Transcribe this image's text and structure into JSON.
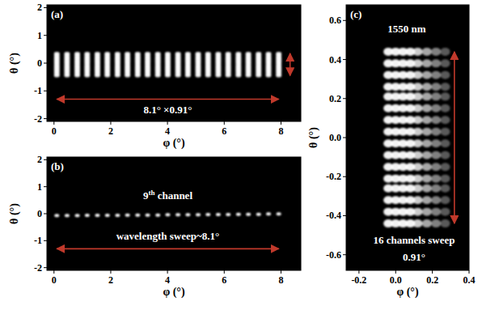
{
  "chart_data": [
    {
      "type": "spot_grid",
      "title": "(a)",
      "x_label": "φ (°)",
      "y_label": "θ (°)",
      "x": [
        0.1,
        0.46,
        0.82,
        1.17,
        1.53,
        1.88,
        2.24,
        2.59,
        2.95,
        3.3,
        3.66,
        4.01,
        4.37,
        4.72,
        5.08,
        5.43,
        5.79,
        6.14,
        6.5,
        6.85,
        7.21,
        7.56,
        7.92
      ],
      "y": [
        -0.45,
        -0.4,
        -0.34,
        -0.29,
        -0.24,
        -0.18,
        -0.13,
        -0.08,
        -0.02,
        0.03,
        0.08,
        0.14,
        0.19,
        0.24,
        0.3,
        0.35
      ],
      "annotations": [
        "8.1° ×0.91°"
      ],
      "xlim": [
        -0.25,
        8.7
      ],
      "ylim": [
        -2.1,
        2.1
      ],
      "xticks": [
        0,
        2,
        4,
        6,
        8
      ],
      "yticks": [
        -2,
        -1,
        0,
        1,
        2
      ]
    },
    {
      "type": "scatter",
      "title": "(b)",
      "x_label": "φ (°)",
      "y_label": "θ (°)",
      "x": [
        0.1,
        0.46,
        0.82,
        1.17,
        1.53,
        1.88,
        2.24,
        2.59,
        2.95,
        3.3,
        3.66,
        4.01,
        4.37,
        4.72,
        5.08,
        5.43,
        5.79,
        6.14,
        6.5,
        6.85,
        7.21,
        7.56,
        7.92
      ],
      "y": [
        -0.07,
        -0.07,
        -0.07,
        -0.06,
        -0.06,
        -0.06,
        -0.06,
        -0.05,
        -0.05,
        -0.05,
        -0.05,
        -0.04,
        -0.04,
        -0.04,
        -0.04,
        -0.03,
        -0.03,
        -0.03,
        -0.02,
        -0.02,
        -0.02,
        -0.01,
        -0.01
      ],
      "annotations": [
        "9th channel",
        "wavelength sweep~8.1°"
      ],
      "xlim": [
        -0.25,
        8.7
      ],
      "ylim": [
        -2.1,
        2.1
      ],
      "xticks": [
        0,
        2,
        4,
        6,
        8
      ],
      "yticks": [
        -2,
        -1,
        0,
        1,
        2
      ]
    },
    {
      "type": "spot_grid",
      "title": "(c)",
      "x_label": "φ (°)",
      "y_label": "θ (°)",
      "x": [
        -0.04,
        0.0,
        0.04,
        0.08,
        0.12,
        0.17,
        0.22,
        0.27
      ],
      "y": [
        -0.44,
        -0.38,
        -0.32,
        -0.26,
        -0.21,
        -0.15,
        -0.09,
        -0.03,
        0.03,
        0.09,
        0.15,
        0.21,
        0.26,
        0.32,
        0.38,
        0.44
      ],
      "annotations": [
        "1550 nm",
        "16 channels sweep",
        "0.91°"
      ],
      "xlim": [
        -0.27,
        0.4
      ],
      "ylim": [
        -0.68,
        0.68
      ],
      "xticks": [
        -0.2,
        {
          "value": 0,
          "label": "0.0"
        },
        0.2,
        0.4
      ],
      "yticks": [
        -0.6,
        -0.4,
        -0.2,
        {
          "value": 0,
          "label": "0.0"
        },
        0.2,
        0.4,
        0.6
      ]
    }
  ]
}
